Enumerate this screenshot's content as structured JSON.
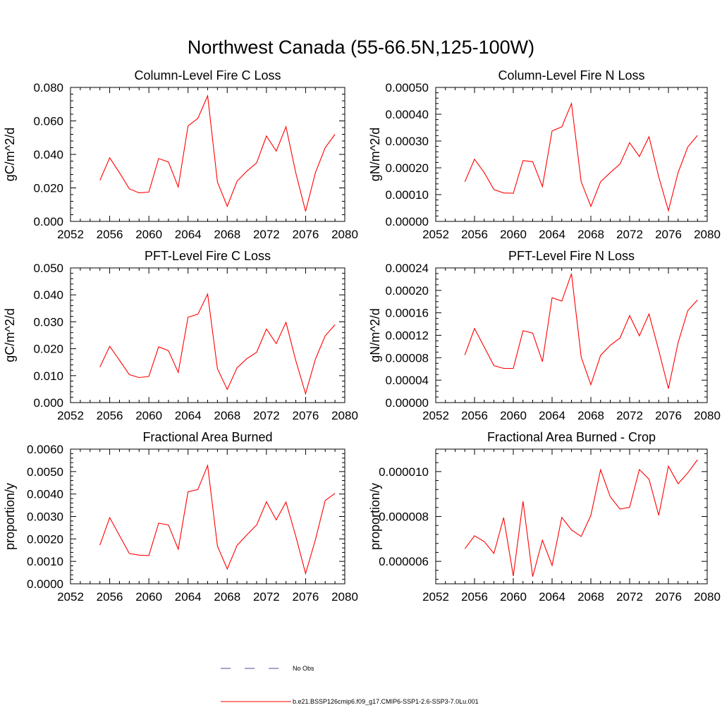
{
  "figure": {
    "title": "Northwest Canada (55-66.5N,125-100W)"
  },
  "legend": {
    "items": [
      {
        "label": "No Obs",
        "color": "#4b4b9b",
        "style": "dashed"
      },
      {
        "label": "b.e21.BSSP126cmip6.f09_g17.CMIP6-SSP1-2.6-SSP3-7.0Lu.001",
        "color": "#ff0000",
        "style": "solid"
      }
    ]
  },
  "chart_data": [
    {
      "type": "line",
      "title": "Column-Level Fire C Loss",
      "ylabel": "gC/m^2/d",
      "xlim": [
        2052,
        2080
      ],
      "ylim": [
        0,
        0.08
      ],
      "xticks": [
        "2052",
        "2056",
        "2060",
        "2064",
        "2068",
        "2072",
        "2076",
        "2080"
      ],
      "yticks": [
        "0.000",
        "0.020",
        "0.040",
        "0.060",
        "0.080"
      ],
      "ytick_values": [
        0,
        0.02,
        0.04,
        0.06,
        0.08
      ],
      "series": [
        {
          "name": "b.e21.BSSP126cmip6.f09_g17.CMIP6-SSP1-2.6-SSP3-7.0Lu.001",
          "color": "#ff0000",
          "x": [
            2055,
            2056,
            2057,
            2058,
            2059,
            2060,
            2061,
            2062,
            2063,
            2064,
            2065,
            2066,
            2067,
            2068,
            2069,
            2070,
            2071,
            2072,
            2073,
            2074,
            2075,
            2076,
            2077,
            2078,
            2079
          ],
          "y": [
            0.0245,
            0.038,
            0.029,
            0.0195,
            0.017,
            0.0175,
            0.0375,
            0.0355,
            0.0205,
            0.057,
            0.0615,
            0.075,
            0.0235,
            0.009,
            0.024,
            0.03,
            0.035,
            0.051,
            0.042,
            0.0565,
            0.029,
            0.006,
            0.029,
            0.044,
            0.052
          ]
        }
      ]
    },
    {
      "type": "line",
      "title": "Column-Level Fire N Loss",
      "ylabel": "gN/m^2/d",
      "xlim": [
        2052,
        2080
      ],
      "ylim": [
        0,
        0.0005
      ],
      "xticks": [
        "2052",
        "2056",
        "2060",
        "2064",
        "2068",
        "2072",
        "2076",
        "2080"
      ],
      "yticks": [
        "0.00000",
        "0.00010",
        "0.00020",
        "0.00030",
        "0.00040",
        "0.00050"
      ],
      "ytick_values": [
        0,
        0.0001,
        0.0002,
        0.0003,
        0.0004,
        0.0005
      ],
      "series": [
        {
          "name": "b.e21.BSSP126cmip6.f09_g17.CMIP6-SSP1-2.6-SSP3-7.0Lu.001",
          "color": "#ff0000",
          "x": [
            2055,
            2056,
            2057,
            2058,
            2059,
            2060,
            2061,
            2062,
            2063,
            2064,
            2065,
            2066,
            2067,
            2068,
            2069,
            2070,
            2071,
            2072,
            2073,
            2074,
            2075,
            2076,
            2077,
            2078,
            2079
          ],
          "y": [
            0.000148,
            0.000232,
            0.000182,
            0.000119,
            0.000106,
            0.000105,
            0.000227,
            0.000223,
            0.00013,
            0.000338,
            0.000353,
            0.00044,
            0.000148,
            5.6e-05,
            0.000148,
            0.000182,
            0.000214,
            0.000294,
            0.000242,
            0.000316,
            0.000166,
            4e-05,
            0.000183,
            0.000278,
            0.000321
          ]
        }
      ]
    },
    {
      "type": "line",
      "title": "PFT-Level Fire C Loss",
      "ylabel": "gC/m^2/d",
      "xlim": [
        2052,
        2080
      ],
      "ylim": [
        0,
        0.05
      ],
      "xticks": [
        "2052",
        "2056",
        "2060",
        "2064",
        "2068",
        "2072",
        "2076",
        "2080"
      ],
      "yticks": [
        "0.000",
        "0.010",
        "0.020",
        "0.030",
        "0.040",
        "0.050"
      ],
      "ytick_values": [
        0,
        0.01,
        0.02,
        0.03,
        0.04,
        0.05
      ],
      "series": [
        {
          "name": "b.e21.BSSP126cmip6.f09_g17.CMIP6-SSP1-2.6-SSP3-7.0Lu.001",
          "color": "#ff0000",
          "x": [
            2055,
            2056,
            2057,
            2058,
            2059,
            2060,
            2061,
            2062,
            2063,
            2064,
            2065,
            2066,
            2067,
            2068,
            2069,
            2070,
            2071,
            2072,
            2073,
            2074,
            2075,
            2076,
            2077,
            2078,
            2079
          ],
          "y": [
            0.0132,
            0.0209,
            0.0157,
            0.0104,
            0.0093,
            0.0097,
            0.0207,
            0.0193,
            0.0112,
            0.0317,
            0.0328,
            0.0403,
            0.0126,
            0.0049,
            0.0129,
            0.0163,
            0.0187,
            0.0273,
            0.0219,
            0.0298,
            0.0156,
            0.0033,
            0.0161,
            0.0248,
            0.0289
          ]
        }
      ]
    },
    {
      "type": "line",
      "title": "PFT-Level Fire N Loss",
      "ylabel": "gN/m^2/d",
      "xlim": [
        2052,
        2080
      ],
      "ylim": [
        0,
        0.00024
      ],
      "xticks": [
        "2052",
        "2056",
        "2060",
        "2064",
        "2068",
        "2072",
        "2076",
        "2080"
      ],
      "yticks": [
        "0.00000",
        "0.00004",
        "0.00008",
        "0.00012",
        "0.00016",
        "0.00020",
        "0.00024"
      ],
      "ytick_values": [
        0,
        4e-05,
        8e-05,
        0.00012,
        0.00016,
        0.0002,
        0.00024
      ],
      "series": [
        {
          "name": "b.e21.BSSP126cmip6.f09_g17.CMIP6-SSP1-2.6-SSP3-7.0Lu.001",
          "color": "#ff0000",
          "x": [
            2055,
            2056,
            2057,
            2058,
            2059,
            2060,
            2061,
            2062,
            2063,
            2064,
            2065,
            2066,
            2067,
            2068,
            2069,
            2070,
            2071,
            2072,
            2073,
            2074,
            2075,
            2076,
            2077,
            2078,
            2079
          ],
          "y": [
            8.5e-05,
            0.000132,
            9.9e-05,
            6.6e-05,
            6.1e-05,
            6.1e-05,
            0.000128,
            0.000124,
            7.3e-05,
            0.000187,
            0.000181,
            0.00023,
            8.1e-05,
            3.2e-05,
            8.4e-05,
            0.000102,
            0.000115,
            0.000155,
            0.000119,
            0.000158,
            9.3e-05,
            2.5e-05,
            0.000107,
            0.000164,
            0.000183
          ]
        }
      ]
    },
    {
      "type": "line",
      "title": "Fractional Area Burned",
      "ylabel": "proportion/y",
      "xlim": [
        2052,
        2080
      ],
      "ylim": [
        0,
        0.006
      ],
      "xticks": [
        "2052",
        "2056",
        "2060",
        "2064",
        "2068",
        "2072",
        "2076",
        "2080"
      ],
      "yticks": [
        "0.0000",
        "0.0010",
        "0.0020",
        "0.0030",
        "0.0040",
        "0.0050",
        "0.0060"
      ],
      "ytick_values": [
        0,
        0.001,
        0.002,
        0.003,
        0.004,
        0.005,
        0.006
      ],
      "series": [
        {
          "name": "b.e21.BSSP126cmip6.f09_g17.CMIP6-SSP1-2.6-SSP3-7.0Lu.001",
          "color": "#ff0000",
          "x": [
            2055,
            2056,
            2057,
            2058,
            2059,
            2060,
            2061,
            2062,
            2063,
            2064,
            2065,
            2066,
            2067,
            2068,
            2069,
            2070,
            2071,
            2072,
            2073,
            2074,
            2075,
            2076,
            2077,
            2078,
            2079
          ],
          "y": [
            0.00172,
            0.00295,
            0.00215,
            0.00135,
            0.00128,
            0.00126,
            0.0027,
            0.00262,
            0.00154,
            0.0041,
            0.0042,
            0.00527,
            0.00168,
            0.00066,
            0.00171,
            0.00218,
            0.00262,
            0.00365,
            0.00285,
            0.00364,
            0.00212,
            0.00046,
            0.00196,
            0.00371,
            0.00403
          ]
        }
      ]
    },
    {
      "type": "line",
      "title": "Fractional Area Burned - Crop",
      "ylabel": "proportion/y",
      "xlim": [
        2052,
        2080
      ],
      "ylim": [
        5e-06,
        1.1e-05
      ],
      "xticks": [
        "2052",
        "2056",
        "2060",
        "2064",
        "2068",
        "2072",
        "2076",
        "2080"
      ],
      "yticks": [
        "0.000006",
        "0.000008",
        "0.000010"
      ],
      "ytick_values": [
        6e-06,
        8e-06,
        1e-05
      ],
      "series": [
        {
          "name": "b.e21.BSSP126cmip6.f09_g17.CMIP6-SSP1-2.6-SSP3-7.0Lu.001",
          "color": "#ff0000",
          "x": [
            2055,
            2056,
            2057,
            2058,
            2059,
            2060,
            2061,
            2062,
            2063,
            2064,
            2065,
            2066,
            2067,
            2068,
            2069,
            2070,
            2071,
            2072,
            2073,
            2074,
            2075,
            2076,
            2077,
            2078,
            2079
          ],
          "y": [
            6.56e-06,
            7.14e-06,
            6.88e-06,
            6.35e-06,
            7.95e-06,
            5.35e-06,
            8.68e-06,
            5.32e-06,
            6.94e-06,
            5.82e-06,
            7.96e-06,
            7.4e-06,
            7.11e-06,
            8.05e-06,
            1.008e-05,
            8.88e-06,
            8.33e-06,
            8.41e-06,
            1.009e-05,
            9.66e-06,
            8.05e-06,
            1.024e-05,
            9.46e-06,
            9.94e-06,
            1.053e-05
          ]
        }
      ]
    }
  ]
}
